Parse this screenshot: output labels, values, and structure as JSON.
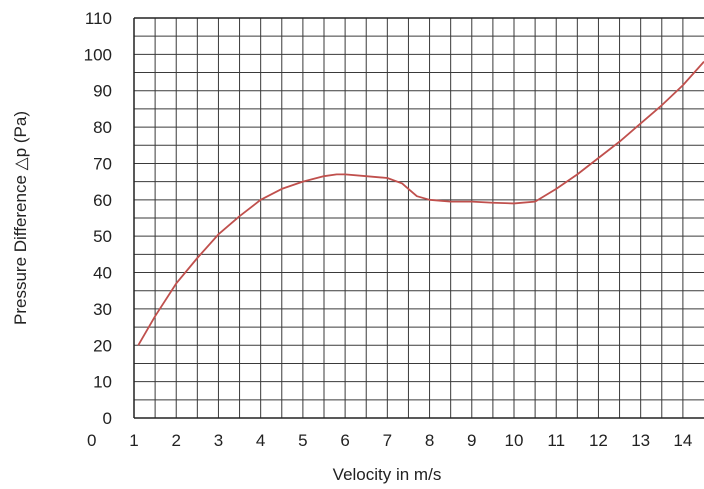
{
  "chart_data": {
    "type": "line",
    "title": "",
    "xlabel": "Velocity in m/s",
    "ylabel": "Pressure Difference △p (Pa)",
    "xlim": [
      1,
      14.5
    ],
    "ylim": [
      0,
      110
    ],
    "grid": true,
    "grid_minor": {
      "x_step": 0.5,
      "y_step": 5
    },
    "x_tick_labels": [
      "0",
      "1",
      "2",
      "3",
      "4",
      "5",
      "6",
      "7",
      "8",
      "9",
      "10",
      "11",
      "12",
      "13",
      "14"
    ],
    "y_tick_labels": [
      "0",
      "10",
      "20",
      "30",
      "40",
      "50",
      "60",
      "70",
      "80",
      "90",
      "100",
      "110"
    ],
    "series": [
      {
        "name": "",
        "color": "#c0504d",
        "x": [
          1.1,
          1.5,
          2.0,
          2.5,
          3.0,
          3.5,
          4.0,
          4.5,
          5.0,
          5.5,
          5.8,
          6.0,
          6.5,
          7.0,
          7.35,
          7.5,
          7.7,
          8.0,
          8.5,
          9.0,
          9.5,
          10.0,
          10.5,
          11.0,
          11.5,
          12.0,
          12.5,
          13.0,
          13.5,
          14.0,
          14.5
        ],
        "y": [
          20,
          28,
          37,
          44,
          50.5,
          55.5,
          60,
          63,
          65,
          66.5,
          67,
          67,
          66.5,
          66,
          64.5,
          63,
          61,
          60,
          59.5,
          59.5,
          59.2,
          59,
          59.5,
          63,
          67,
          71.5,
          76,
          81,
          86,
          91.5,
          98
        ]
      }
    ]
  }
}
